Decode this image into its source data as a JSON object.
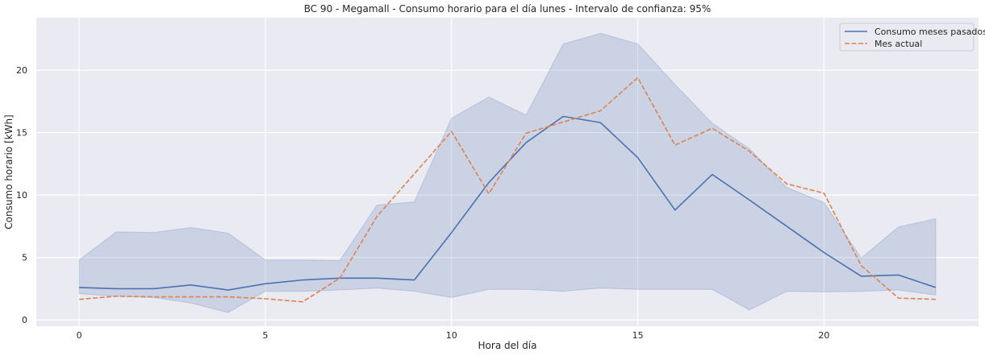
{
  "chart_data": {
    "type": "line",
    "title": "BC 90 - Megamall - Consumo horario para el día lunes - Intervalo de confianza: 95%",
    "xlabel": "Hora del día",
    "ylabel": "Consumo horario [kWh]",
    "xlim": [
      -1.15,
      24.15
    ],
    "ylim": [
      -0.5,
      24.2
    ],
    "xticks": [
      0,
      5,
      10,
      15,
      20
    ],
    "yticks": [
      0,
      5,
      10,
      15,
      20
    ],
    "grid": true,
    "legend_position": "top-right",
    "x": [
      0,
      1,
      2,
      3,
      4,
      5,
      6,
      7,
      8,
      9,
      10,
      11,
      12,
      13,
      14,
      15,
      16,
      17,
      18,
      19,
      20,
      21,
      22,
      23
    ],
    "series": [
      {
        "name": "Consumo meses pasados",
        "style": "solid",
        "color": "#4c72b0",
        "values": [
          2.6,
          2.5,
          2.5,
          2.8,
          2.4,
          2.9,
          3.2,
          3.35,
          3.35,
          3.2,
          7.0,
          11.0,
          14.2,
          16.3,
          15.8,
          13.0,
          8.8,
          11.65,
          9.6,
          7.5,
          5.4,
          3.5,
          3.6,
          2.6
        ],
        "ci_lower": [
          2.1,
          1.9,
          1.8,
          1.35,
          0.6,
          2.3,
          2.3,
          2.4,
          2.55,
          2.3,
          1.8,
          2.45,
          2.45,
          2.3,
          2.55,
          2.45,
          2.45,
          2.45,
          0.8,
          2.3,
          2.25,
          2.3,
          2.4,
          2.0
        ],
        "ci_upper": [
          4.8,
          7.05,
          7.0,
          7.4,
          6.95,
          4.8,
          4.8,
          4.75,
          9.2,
          9.45,
          16.15,
          17.85,
          16.4,
          22.1,
          22.95,
          22.1,
          18.85,
          15.75,
          13.7,
          10.6,
          9.4,
          4.95,
          7.45,
          8.1
        ]
      },
      {
        "name": "Mes actual",
        "style": "dashed",
        "color": "#dd8452",
        "values": [
          1.65,
          1.9,
          1.85,
          1.85,
          1.85,
          1.7,
          1.45,
          3.35,
          8.3,
          11.7,
          15.1,
          10.1,
          14.95,
          15.85,
          16.75,
          19.4,
          14.0,
          15.35,
          13.5,
          10.9,
          10.15,
          4.35,
          1.75,
          1.65
        ]
      }
    ]
  }
}
